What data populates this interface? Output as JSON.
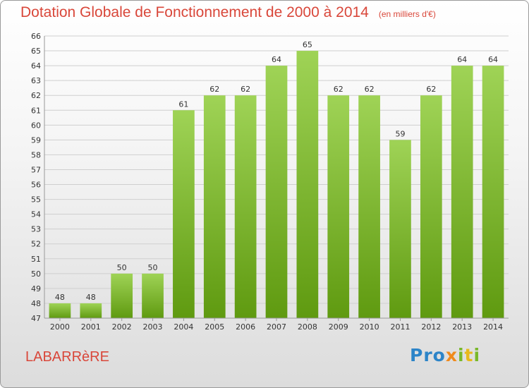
{
  "title": "Dotation Globale de Fonctionnement de 2000 à 2014",
  "unit": "(en milliers d'€)",
  "commune": "LABARRèRE",
  "logo": {
    "p1": "Pro",
    "p2": "x",
    "p3": "i",
    "p4": "t",
    "p5": "i"
  },
  "colors": {
    "bar_light": "#9fd356",
    "bar_dark": "#5f9a10",
    "title": "#d9473a",
    "grid": "#cfcfcf"
  },
  "chart_data": {
    "type": "bar",
    "title": "Dotation Globale de Fonctionnement de 2000 à 2014",
    "subtitle": "(en milliers d'€)",
    "categories": [
      "2000",
      "2001",
      "2002",
      "2003",
      "2004",
      "2005",
      "2006",
      "2007",
      "2008",
      "2009",
      "2010",
      "2011",
      "2012",
      "2013",
      "2014"
    ],
    "values": [
      48,
      48,
      50,
      50,
      61,
      62,
      62,
      64,
      65,
      62,
      62,
      59,
      62,
      64,
      64
    ],
    "ylim": [
      47,
      66
    ],
    "yticks": [
      47,
      48,
      49,
      50,
      51,
      52,
      53,
      54,
      55,
      56,
      57,
      58,
      59,
      60,
      61,
      62,
      63,
      64,
      65,
      66
    ],
    "grid": true,
    "xlabel": "",
    "ylabel": ""
  }
}
